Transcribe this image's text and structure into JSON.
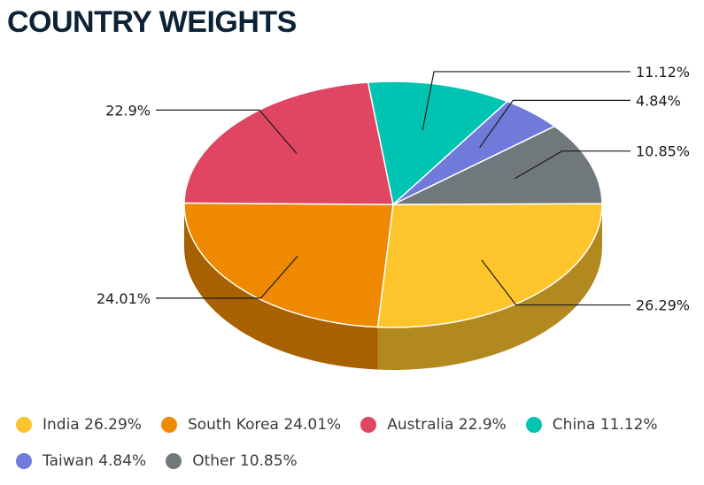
{
  "title": "COUNTRY WEIGHTS",
  "chart_data": {
    "type": "pie",
    "style": "3d",
    "title": "COUNTRY WEIGHTS",
    "slices": [
      {
        "name": "India",
        "value": 26.29,
        "label": "26.29%",
        "legend": "India 26.29%",
        "color": "#fdc42b"
      },
      {
        "name": "South Korea",
        "value": 24.01,
        "label": "24.01%",
        "legend": "South Korea 24.01%",
        "color": "#ef8a00"
      },
      {
        "name": "Australia",
        "value": 22.9,
        "label": "22.9%",
        "legend": "Australia 22.9%",
        "color": "#e04562"
      },
      {
        "name": "China",
        "value": 11.12,
        "label": "11.12%",
        "legend": "China 11.12%",
        "color": "#00c4b2"
      },
      {
        "name": "Taiwan",
        "value": 4.84,
        "label": "4.84%",
        "legend": "Taiwan 4.84%",
        "color": "#6f7adb"
      },
      {
        "name": "Other",
        "value": 10.85,
        "label": "10.85%",
        "legend": "Other 10.85%",
        "color": "#71787c"
      }
    ],
    "legend_position": "bottom"
  }
}
